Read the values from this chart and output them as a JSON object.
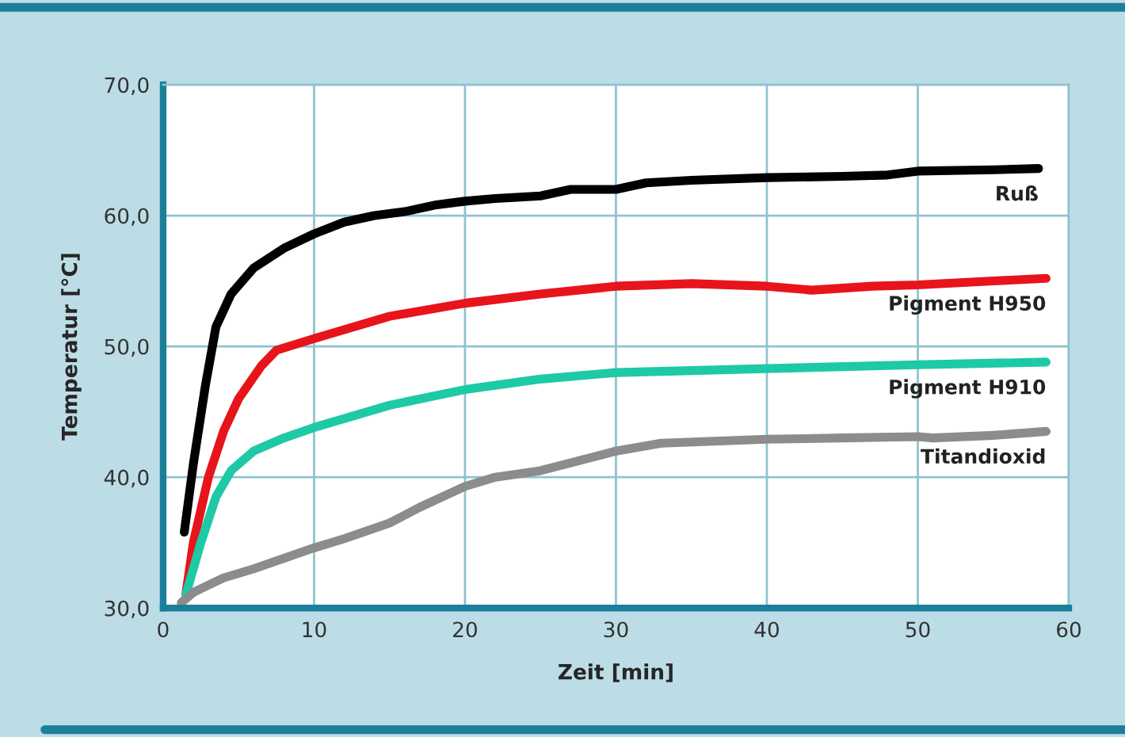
{
  "chart_data": {
    "type": "line",
    "xlabel": "Zeit [min]",
    "ylabel": "Temperatur [°C]",
    "xlim": [
      0,
      60
    ],
    "xticks": [
      0,
      10,
      20,
      30,
      40,
      50,
      60
    ],
    "ylim": [
      30,
      70
    ],
    "yticks": [
      {
        "value": 30,
        "label": "30,0"
      },
      {
        "value": 40,
        "label": "40,0"
      },
      {
        "value": 50,
        "label": "50,0"
      },
      {
        "value": 60,
        "label": "60,0"
      },
      {
        "value": 70,
        "label": "70,0"
      }
    ],
    "grid": true,
    "legend": false,
    "marker": "none",
    "line_style": "solid",
    "series": [
      {
        "name": "Ruß",
        "color": "#000000",
        "x": [
          1.4,
          2,
          2.8,
          3.5,
          4.5,
          6,
          8,
          10,
          12,
          14,
          16,
          18,
          20,
          22,
          25,
          27,
          30,
          32,
          35,
          40,
          45,
          48,
          50,
          55,
          58
        ],
        "values": [
          35.8,
          41,
          47,
          51.5,
          54,
          56,
          57.5,
          58.6,
          59.5,
          60,
          60.3,
          60.8,
          61.1,
          61.3,
          61.5,
          62,
          62,
          62.5,
          62.7,
          62.9,
          63,
          63.1,
          63.4,
          63.5,
          63.6
        ]
      },
      {
        "name": "Pigment H950",
        "color": "#e8141b",
        "x": [
          1.5,
          2,
          3,
          4,
          5,
          6.5,
          7.5,
          10,
          15,
          20,
          25,
          30,
          35,
          40,
          43,
          47,
          50,
          55,
          58.5
        ],
        "values": [
          31,
          35,
          40,
          43.5,
          46,
          48.5,
          49.7,
          50.6,
          52.3,
          53.3,
          54,
          54.6,
          54.8,
          54.6,
          54.3,
          54.6,
          54.7,
          55,
          55.2
        ]
      },
      {
        "name": "Pigment H910",
        "color": "#1ec9a6",
        "x": [
          1.5,
          2.5,
          3.5,
          4.5,
          6,
          8,
          10,
          15,
          20,
          25,
          30,
          40,
          50,
          58.5
        ],
        "values": [
          31,
          35,
          38.5,
          40.5,
          42,
          43,
          43.8,
          45.5,
          46.7,
          47.5,
          48,
          48.3,
          48.6,
          48.8
        ]
      },
      {
        "name": "Titandioxid",
        "color": "#8c8c8c",
        "x": [
          1.2,
          2,
          4,
          6,
          8,
          10,
          12,
          15,
          17,
          20,
          22,
          25,
          30,
          33,
          40,
          45,
          50,
          51,
          55,
          58.5
        ],
        "values": [
          30.4,
          31.2,
          32.3,
          33,
          33.8,
          34.6,
          35.3,
          36.5,
          37.7,
          39.3,
          40,
          40.5,
          42,
          42.6,
          42.9,
          43,
          43.1,
          43,
          43.2,
          43.5
        ]
      }
    ]
  }
}
